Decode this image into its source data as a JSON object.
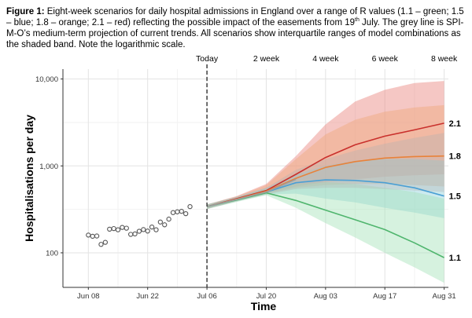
{
  "caption": {
    "label": "Figure 1:",
    "pre": " Eight-week scenarios for daily hospital admissions in England over a range of R values (1.1 – green; 1.5 – blue; 1.8 – orange; 2.1 – red) reflecting the possible impact of the easements from ",
    "day": "19",
    "suffix": "th",
    "post": " July. The grey line is SPI-M-O’s medium-term projection of current trends. All scenarios show interquartile ranges of model combinations as the shaded band. Note the logarithmic scale."
  },
  "chart_data": {
    "type": "line",
    "scale": {
      "y": "log"
    },
    "xlabel": "Time",
    "ylabel": "Hospitalisations per day",
    "ylim": [
      40,
      13000
    ],
    "xlim": [
      "2021-06-02",
      "2021-09-01"
    ],
    "grid": true,
    "today": "2021-07-06",
    "x_ticks": [
      {
        "date": "2021-06-08",
        "label": "Jun 08"
      },
      {
        "date": "2021-06-22",
        "label": "Jun 22"
      },
      {
        "date": "2021-07-06",
        "label": "Jul 06"
      },
      {
        "date": "2021-07-20",
        "label": "Jul 20"
      },
      {
        "date": "2021-08-03",
        "label": "Aug 03"
      },
      {
        "date": "2021-08-17",
        "label": "Aug 17"
      },
      {
        "date": "2021-08-31",
        "label": "Aug 31"
      }
    ],
    "y_ticks": [
      {
        "value": 100,
        "label": "100"
      },
      {
        "value": 1000,
        "label": "1,000"
      },
      {
        "value": 10000,
        "label": "10,000"
      }
    ],
    "top_ticks": [
      {
        "date": "2021-07-06",
        "label": "Today"
      },
      {
        "date": "2021-07-20",
        "label": "2 week"
      },
      {
        "date": "2021-08-03",
        "label": "4 week"
      },
      {
        "date": "2021-08-17",
        "label": "6 week"
      },
      {
        "date": "2021-08-31",
        "label": "8 week"
      }
    ],
    "observed": [
      {
        "x": "2021-06-08",
        "y": 160
      },
      {
        "x": "2021-06-09",
        "y": 155
      },
      {
        "x": "2021-06-10",
        "y": 156
      },
      {
        "x": "2021-06-11",
        "y": 125
      },
      {
        "x": "2021-06-12",
        "y": 132
      },
      {
        "x": "2021-06-13",
        "y": 187
      },
      {
        "x": "2021-06-14",
        "y": 190
      },
      {
        "x": "2021-06-15",
        "y": 184
      },
      {
        "x": "2021-06-16",
        "y": 196
      },
      {
        "x": "2021-06-17",
        "y": 192
      },
      {
        "x": "2021-06-18",
        "y": 163
      },
      {
        "x": "2021-06-19",
        "y": 165
      },
      {
        "x": "2021-06-20",
        "y": 177
      },
      {
        "x": "2021-06-21",
        "y": 185
      },
      {
        "x": "2021-06-22",
        "y": 178
      },
      {
        "x": "2021-06-23",
        "y": 198
      },
      {
        "x": "2021-06-24",
        "y": 184
      },
      {
        "x": "2021-06-25",
        "y": 226
      },
      {
        "x": "2021-06-26",
        "y": 210
      },
      {
        "x": "2021-06-27",
        "y": 244
      },
      {
        "x": "2021-06-28",
        "y": 290
      },
      {
        "x": "2021-06-29",
        "y": 296
      },
      {
        "x": "2021-06-30",
        "y": 300
      },
      {
        "x": "2021-07-01",
        "y": 282
      },
      {
        "x": "2021-07-02",
        "y": 340
      }
    ],
    "series": [
      {
        "name": "2.1",
        "color": "#c9302c",
        "band_color": "#e8837c",
        "points": [
          {
            "x": "2021-07-06",
            "y": 340
          },
          {
            "x": "2021-07-13",
            "y": 420
          },
          {
            "x": "2021-07-20",
            "y": 520
          },
          {
            "x": "2021-07-27",
            "y": 800
          },
          {
            "x": "2021-08-03",
            "y": 1250
          },
          {
            "x": "2021-08-10",
            "y": 1750
          },
          {
            "x": "2021-08-17",
            "y": 2200
          },
          {
            "x": "2021-08-24",
            "y": 2600
          },
          {
            "x": "2021-08-31",
            "y": 3100
          }
        ],
        "band": [
          {
            "x": "2021-07-06",
            "lo": 320,
            "hi": 360
          },
          {
            "x": "2021-07-13",
            "lo": 400,
            "hi": 450
          },
          {
            "x": "2021-07-20",
            "lo": 490,
            "hi": 620
          },
          {
            "x": "2021-07-27",
            "lo": 580,
            "hi": 1300
          },
          {
            "x": "2021-08-03",
            "lo": 650,
            "hi": 3000
          },
          {
            "x": "2021-08-10",
            "lo": 700,
            "hi": 5500
          },
          {
            "x": "2021-08-17",
            "lo": 750,
            "hi": 7500
          },
          {
            "x": "2021-08-24",
            "lo": 780,
            "hi": 9000
          },
          {
            "x": "2021-08-31",
            "lo": 800,
            "hi": 9500
          }
        ]
      },
      {
        "name": "1.8",
        "color": "#e8823a",
        "band_color": "#f0a87c",
        "points": [
          {
            "x": "2021-07-06",
            "y": 340
          },
          {
            "x": "2021-07-13",
            "y": 415
          },
          {
            "x": "2021-07-20",
            "y": 510
          },
          {
            "x": "2021-07-27",
            "y": 720
          },
          {
            "x": "2021-08-03",
            "y": 960
          },
          {
            "x": "2021-08-10",
            "y": 1120
          },
          {
            "x": "2021-08-17",
            "y": 1230
          },
          {
            "x": "2021-08-24",
            "y": 1280
          },
          {
            "x": "2021-08-31",
            "y": 1300
          }
        ],
        "band": [
          {
            "x": "2021-07-06",
            "lo": 320,
            "hi": 360
          },
          {
            "x": "2021-07-13",
            "lo": 395,
            "hi": 445
          },
          {
            "x": "2021-07-20",
            "lo": 480,
            "hi": 600
          },
          {
            "x": "2021-07-27",
            "lo": 560,
            "hi": 1200
          },
          {
            "x": "2021-08-03",
            "lo": 600,
            "hi": 2300
          },
          {
            "x": "2021-08-10",
            "lo": 620,
            "hi": 3400
          },
          {
            "x": "2021-08-17",
            "lo": 620,
            "hi": 4200
          },
          {
            "x": "2021-08-24",
            "lo": 600,
            "hi": 4700
          },
          {
            "x": "2021-08-31",
            "lo": 580,
            "hi": 5000
          }
        ]
      },
      {
        "name": "1.5",
        "color": "#4a9fd4",
        "band_color": "#8fd0dc",
        "points": [
          {
            "x": "2021-07-06",
            "y": 340
          },
          {
            "x": "2021-07-13",
            "y": 410
          },
          {
            "x": "2021-07-20",
            "y": 500
          },
          {
            "x": "2021-07-27",
            "y": 640
          },
          {
            "x": "2021-08-03",
            "y": 690
          },
          {
            "x": "2021-08-10",
            "y": 680
          },
          {
            "x": "2021-08-17",
            "y": 640
          },
          {
            "x": "2021-08-24",
            "y": 560
          },
          {
            "x": "2021-08-31",
            "y": 450
          }
        ],
        "band": [
          {
            "x": "2021-07-06",
            "lo": 320,
            "hi": 360
          },
          {
            "x": "2021-07-13",
            "lo": 390,
            "hi": 440
          },
          {
            "x": "2021-07-20",
            "lo": 470,
            "hi": 560
          },
          {
            "x": "2021-07-27",
            "lo": 480,
            "hi": 800
          },
          {
            "x": "2021-08-03",
            "lo": 420,
            "hi": 1000
          },
          {
            "x": "2021-08-10",
            "lo": 380,
            "hi": 1150
          },
          {
            "x": "2021-08-17",
            "lo": 330,
            "hi": 1200
          },
          {
            "x": "2021-08-24",
            "lo": 290,
            "hi": 1200
          },
          {
            "x": "2021-08-31",
            "lo": 250,
            "hi": 1150
          }
        ]
      },
      {
        "name": "1.1",
        "color": "#4fb56d",
        "band_color": "#a5e3b8",
        "points": [
          {
            "x": "2021-07-06",
            "y": 340
          },
          {
            "x": "2021-07-13",
            "y": 405
          },
          {
            "x": "2021-07-20",
            "y": 490
          },
          {
            "x": "2021-07-27",
            "y": 400
          },
          {
            "x": "2021-08-03",
            "y": 310
          },
          {
            "x": "2021-08-10",
            "y": 240
          },
          {
            "x": "2021-08-17",
            "y": 185
          },
          {
            "x": "2021-08-24",
            "y": 130
          },
          {
            "x": "2021-08-31",
            "y": 88
          }
        ],
        "band": [
          {
            "x": "2021-07-06",
            "lo": 320,
            "hi": 360
          },
          {
            "x": "2021-07-13",
            "lo": 385,
            "hi": 430
          },
          {
            "x": "2021-07-20",
            "lo": 460,
            "hi": 540
          },
          {
            "x": "2021-07-27",
            "lo": 330,
            "hi": 620
          },
          {
            "x": "2021-08-03",
            "lo": 220,
            "hi": 650
          },
          {
            "x": "2021-08-10",
            "lo": 150,
            "hi": 620
          },
          {
            "x": "2021-08-17",
            "lo": 100,
            "hi": 560
          },
          {
            "x": "2021-08-24",
            "lo": 68,
            "hi": 500
          },
          {
            "x": "2021-08-31",
            "lo": 45,
            "hi": 420
          }
        ]
      },
      {
        "name": "",
        "color": "#9e9e9e",
        "band_color": "#b3b3b3",
        "points": [
          {
            "x": "2021-07-06",
            "y": 340
          },
          {
            "x": "2021-07-13",
            "y": 410
          },
          {
            "x": "2021-07-20",
            "y": 500
          },
          {
            "x": "2021-07-27",
            "y": 700
          }
        ],
        "band": [
          {
            "x": "2021-07-06",
            "lo": 320,
            "hi": 360
          },
          {
            "x": "2021-07-13",
            "lo": 390,
            "hi": 440
          },
          {
            "x": "2021-07-20",
            "lo": 470,
            "hi": 560
          },
          {
            "x": "2021-07-27",
            "lo": 540,
            "hi": 900
          },
          {
            "x": "2021-08-03",
            "lo": 560,
            "hi": 1200
          },
          {
            "x": "2021-08-10",
            "lo": 560,
            "hi": 1500
          },
          {
            "x": "2021-08-17",
            "lo": 540,
            "hi": 1800
          },
          {
            "x": "2021-08-24",
            "lo": 520,
            "hi": 2100
          },
          {
            "x": "2021-08-31",
            "lo": 500,
            "hi": 2400
          }
        ]
      }
    ]
  }
}
